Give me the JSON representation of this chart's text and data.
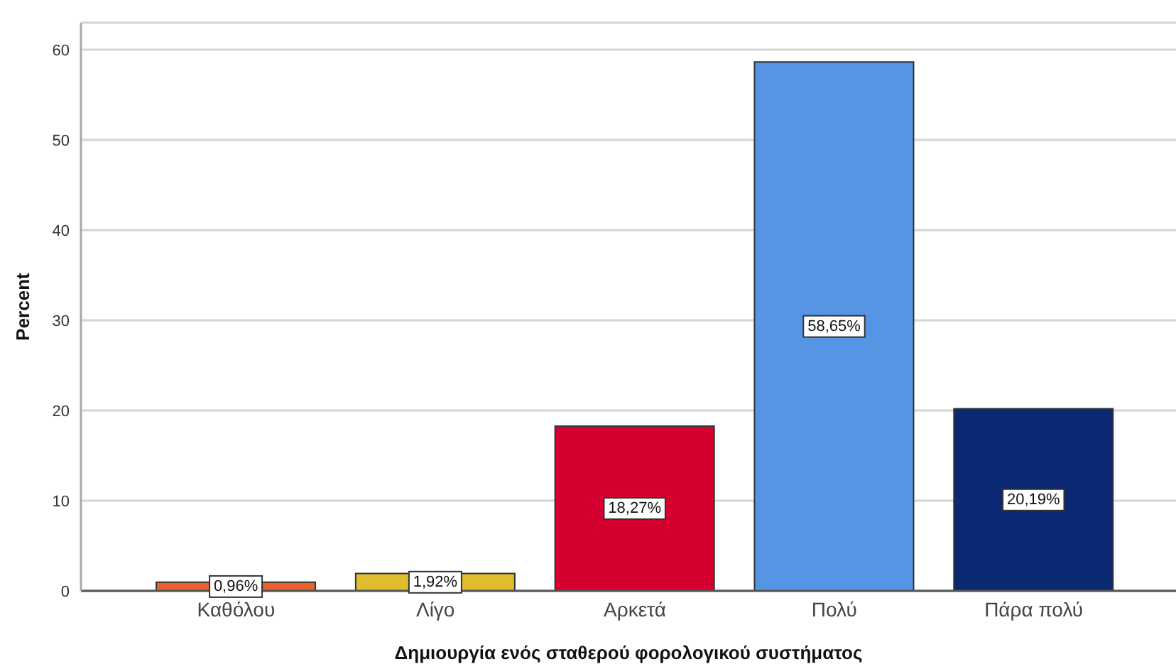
{
  "chart_data": {
    "type": "bar",
    "xlabel": "Δημιουργία ενός σταθερού φορολογικού συστήματος",
    "ylabel": "Percent",
    "categories": [
      "Καθόλου",
      "Λίγο",
      "Αρκετά",
      "Πολύ",
      "Πάρα πολύ"
    ],
    "values": [
      0.96,
      1.92,
      18.27,
      58.65,
      20.19
    ],
    "value_labels": [
      "0,96%",
      "1,92%",
      "18,27%",
      "58,65%",
      "20,19%"
    ],
    "colors": [
      "#e8632b",
      "#dfbd2c",
      "#d5002f",
      "#5595e4",
      "#0b2873"
    ],
    "ylim": [
      0,
      63
    ],
    "yticks": [
      0,
      10,
      20,
      30,
      40,
      50,
      60
    ],
    "grid": "y"
  }
}
